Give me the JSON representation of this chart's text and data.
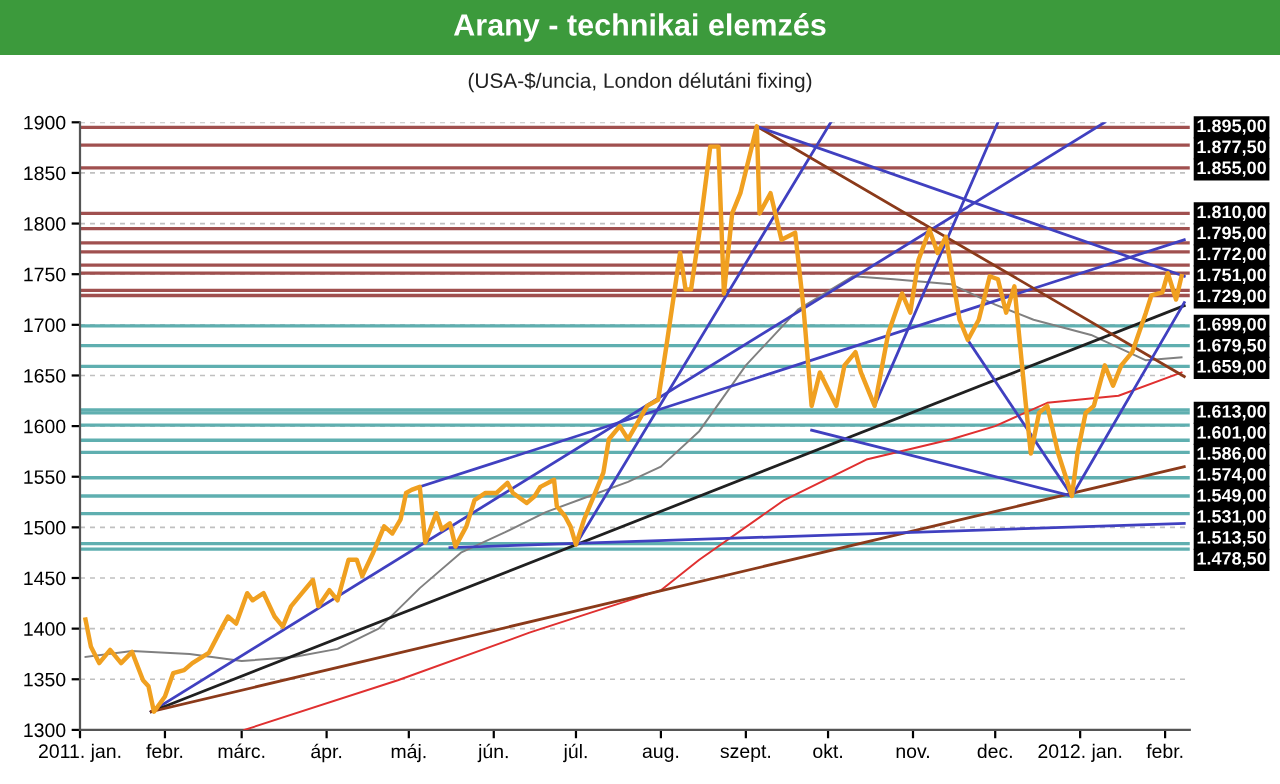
{
  "chart_data": {
    "type": "line",
    "title": "Arany - technikai elemzés",
    "subtitle": "(USA-$/uncia, London délutáni fixing)",
    "xlim": [
      "2011-01-01",
      "2012-02-10"
    ],
    "xticks": [
      {
        "value": "2011-01-01",
        "label": "2011. jan."
      },
      {
        "value": "2011-02-01",
        "label": "febr."
      },
      {
        "value": "2011-03-01",
        "label": "márc."
      },
      {
        "value": "2011-04-01",
        "label": "ápr."
      },
      {
        "value": "2011-05-01",
        "label": "máj."
      },
      {
        "value": "2011-06-01",
        "label": "jún."
      },
      {
        "value": "2011-07-01",
        "label": "júl."
      },
      {
        "value": "2011-08-01",
        "label": "aug."
      },
      {
        "value": "2011-09-01",
        "label": "szept."
      },
      {
        "value": "2011-10-01",
        "label": "okt."
      },
      {
        "value": "2011-11-01",
        "label": "nov."
      },
      {
        "value": "2011-12-01",
        "label": "dec."
      },
      {
        "value": "2012-01-01",
        "label": "2012. jan."
      },
      {
        "value": "2012-02-01",
        "label": "febr."
      }
    ],
    "ylim": [
      1300,
      1900
    ],
    "yticks": [
      1300,
      1350,
      1400,
      1450,
      1500,
      1550,
      1600,
      1650,
      1700,
      1750,
      1800,
      1850,
      1900
    ],
    "grid": "y",
    "legend": false,
    "marker": "none",
    "line_style": "solid",
    "series": [
      {
        "color": "#e03030",
        "x": [
          "2011-03-02",
          "2011-04-27",
          "2011-06-14",
          "2011-07-09",
          "2011-08-01",
          "2011-08-15",
          "2011-09-15",
          "2011-10-15",
          "2011-11-15",
          "2011-12-01",
          "2011-12-20",
          "2012-01-15",
          "2012-02-07"
        ],
        "values": [
          1300,
          1349,
          1396,
          1418,
          1438,
          1468,
          1527,
          1567,
          1587,
          1600,
          1623,
          1630,
          1653
        ]
      },
      {
        "color": "#808080",
        "x": [
          "2011-01-03",
          "2011-01-20",
          "2011-02-10",
          "2011-03-01",
          "2011-03-20",
          "2011-04-05",
          "2011-04-20",
          "2011-05-05",
          "2011-05-20",
          "2011-06-05",
          "2011-06-20",
          "2011-07-05",
          "2011-07-20",
          "2011-08-01",
          "2011-08-15",
          "2011-09-01",
          "2011-09-20",
          "2011-10-10",
          "2011-10-25",
          "2011-11-15",
          "2011-12-01",
          "2011-12-15",
          "2012-01-05",
          "2012-01-25",
          "2012-02-07"
        ],
        "values": [
          1372,
          1378,
          1375,
          1368,
          1372,
          1380,
          1400,
          1440,
          1475,
          1495,
          1515,
          1530,
          1545,
          1560,
          1595,
          1660,
          1715,
          1748,
          1745,
          1740,
          1720,
          1705,
          1690,
          1665,
          1668
        ]
      },
      {
        "color": "#4040c0",
        "x": [
          "2011-01-27",
          "2012-01-10"
        ],
        "values": [
          1318,
          1900
        ]
      },
      {
        "color": "#4040c0",
        "x": [
          "2011-05-05",
          "2012-02-08"
        ],
        "values": [
          1540,
          1784
        ]
      },
      {
        "color": "#4040c0",
        "x": [
          "2011-07-01",
          "2011-10-02"
        ],
        "values": [
          1483,
          1900
        ]
      },
      {
        "color": "#202020",
        "x": [
          "2011-01-27",
          "2012-02-08"
        ],
        "values": [
          1318,
          1719
        ]
      },
      {
        "color": "#8b3a1a",
        "x": [
          "2011-01-27",
          "2012-02-08"
        ],
        "values": [
          1318,
          1560
        ]
      },
      {
        "color": "#4040c0",
        "x": [
          "2011-05-16",
          "2012-02-08"
        ],
        "values": [
          1480,
          1504
        ]
      },
      {
        "color": "#8b3a1a",
        "x": [
          "2011-09-05",
          "2012-02-08"
        ],
        "values": [
          1896,
          1649
        ]
      },
      {
        "color": "#4040c0",
        "x": [
          "2011-09-05",
          "2012-02-08"
        ],
        "values": [
          1896,
          1748
        ]
      },
      {
        "color": "#4040c0",
        "x": [
          "2011-09-25",
          "2011-12-29"
        ],
        "values": [
          1596,
          1531
        ]
      },
      {
        "color": "#4040c0",
        "x": [
          "2011-12-29",
          "2012-02-08"
        ],
        "values": [
          1531,
          1722
        ]
      },
      {
        "color": "#4040c0",
        "x": [
          "2011-11-21",
          "2011-12-29"
        ],
        "values": [
          1685,
          1531
        ]
      },
      {
        "color": "#4040c0",
        "x": [
          "2011-10-18",
          "2011-12-02"
        ],
        "values": [
          1620,
          1900
        ]
      },
      {
        "color": "#f0a020",
        "x": [
          "2011-01-03",
          "2011-01-05",
          "2011-01-08",
          "2011-01-12",
          "2011-01-16",
          "2011-01-20",
          "2011-01-24",
          "2011-01-26",
          "2011-01-28",
          "2011-02-01",
          "2011-02-04",
          "2011-02-08",
          "2011-02-11",
          "2011-02-17",
          "2011-02-22",
          "2011-02-24",
          "2011-02-27",
          "2011-03-03",
          "2011-03-05",
          "2011-03-09",
          "2011-03-13",
          "2011-03-16",
          "2011-03-19",
          "2011-03-23",
          "2011-03-27",
          "2011-03-29",
          "2011-04-02",
          "2011-04-05",
          "2011-04-09",
          "2011-04-12",
          "2011-04-14",
          "2011-04-18",
          "2011-04-22",
          "2011-04-25",
          "2011-04-28",
          "2011-04-30",
          "2011-05-02",
          "2011-05-05",
          "2011-05-07",
          "2011-05-11",
          "2011-05-13",
          "2011-05-16",
          "2011-05-18",
          "2011-05-22",
          "2011-05-25",
          "2011-05-29",
          "2011-06-02",
          "2011-06-06",
          "2011-06-08",
          "2011-06-13",
          "2011-06-16",
          "2011-06-18",
          "2011-06-23",
          "2011-06-24",
          "2011-06-27",
          "2011-06-29",
          "2011-07-01",
          "2011-07-04",
          "2011-07-08",
          "2011-07-11",
          "2011-07-13",
          "2011-07-17",
          "2011-07-20",
          "2011-07-24",
          "2011-07-27",
          "2011-07-31",
          "2011-08-03",
          "2011-08-08",
          "2011-08-10",
          "2011-08-12",
          "2011-08-15",
          "2011-08-19",
          "2011-08-22",
          "2011-08-24",
          "2011-08-27",
          "2011-08-30",
          "2011-09-02",
          "2011-09-05",
          "2011-09-06",
          "2011-09-10",
          "2011-09-14",
          "2011-09-19",
          "2011-09-22",
          "2011-09-25",
          "2011-09-28",
          "2011-10-04",
          "2011-10-07",
          "2011-10-11",
          "2011-10-13",
          "2011-10-18",
          "2011-10-23",
          "2011-10-28",
          "2011-10-31",
          "2011-11-03",
          "2011-11-07",
          "2011-11-10",
          "2011-11-13",
          "2011-11-18",
          "2011-11-21",
          "2011-11-25",
          "2011-11-29",
          "2011-12-02",
          "2011-12-05",
          "2011-12-08",
          "2011-12-12",
          "2011-12-14",
          "2011-12-17",
          "2011-12-20",
          "2011-12-24",
          "2011-12-29",
          "2011-12-31",
          "2012-01-03",
          "2012-01-06",
          "2012-01-10",
          "2012-01-13",
          "2012-01-16",
          "2012-01-20",
          "2012-01-25",
          "2012-01-27",
          "2012-01-31",
          "2012-02-02",
          "2012-02-05",
          "2012-02-07"
        ],
        "values": [
          1409,
          1382,
          1366,
          1379,
          1366,
          1377,
          1349,
          1343,
          1318,
          1333,
          1356,
          1359,
          1366,
          1376,
          1402,
          1412,
          1405,
          1435,
          1428,
          1435,
          1412,
          1402,
          1422,
          1435,
          1448,
          1422,
          1438,
          1428,
          1468,
          1468,
          1452,
          1475,
          1501,
          1494,
          1508,
          1534,
          1537,
          1540,
          1485,
          1514,
          1498,
          1504,
          1481,
          1501,
          1527,
          1534,
          1534,
          1544,
          1534,
          1524,
          1531,
          1540,
          1547,
          1521,
          1511,
          1501,
          1483,
          1508,
          1534,
          1554,
          1587,
          1600,
          1587,
          1606,
          1620,
          1626,
          1679,
          1771,
          1735,
          1735,
          1791,
          1876,
          1876,
          1731,
          1810,
          1830,
          1863,
          1896,
          1810,
          1830,
          1784,
          1791,
          1718,
          1620,
          1653,
          1620,
          1660,
          1673,
          1653,
          1620,
          1692,
          1731,
          1712,
          1764,
          1794,
          1771,
          1787,
          1705,
          1685,
          1705,
          1748,
          1745,
          1712,
          1738,
          1626,
          1573,
          1613,
          1620,
          1573,
          1531,
          1573,
          1613,
          1620,
          1660,
          1640,
          1660,
          1673,
          1712,
          1729,
          1732,
          1751,
          1725,
          1748
        ]
      }
    ],
    "ref_lines": [
      {
        "axis": "y",
        "value": 1895,
        "label": "1.895,00",
        "color": "#a0504f"
      },
      {
        "axis": "y",
        "value": 1877.5,
        "label": "1.877,50",
        "color": "#a0504f"
      },
      {
        "axis": "y",
        "value": 1855,
        "label": "1.855,00",
        "color": "#a0504f"
      },
      {
        "axis": "y",
        "value": 1810,
        "label": "1.810,00",
        "color": "#a0504f"
      },
      {
        "axis": "y",
        "value": 1795,
        "label": "1.795,00",
        "color": "#a0504f"
      },
      {
        "axis": "y",
        "value": 1781,
        "label": null,
        "color": "#a0504f"
      },
      {
        "axis": "y",
        "value": 1772,
        "label": "1.772,00",
        "color": "#a0504f"
      },
      {
        "axis": "y",
        "value": 1759,
        "label": null,
        "color": "#a0504f"
      },
      {
        "axis": "y",
        "value": 1751,
        "label": "1.751,00",
        "color": "#a0504f"
      },
      {
        "axis": "y",
        "value": 1734,
        "label": null,
        "color": "#a0504f"
      },
      {
        "axis": "y",
        "value": 1729,
        "label": "1.729,00",
        "color": "#a0504f"
      },
      {
        "axis": "y",
        "value": 1699,
        "label": "1.699,00",
        "color": "#5fafb0"
      },
      {
        "axis": "y",
        "value": 1679.5,
        "label": "1.679,50",
        "color": "#5fafb0"
      },
      {
        "axis": "y",
        "value": 1659,
        "label": "1.659,00",
        "color": "#5fafb0"
      },
      {
        "axis": "y",
        "value": 1616,
        "label": null,
        "color": "#5fafb0"
      },
      {
        "axis": "y",
        "value": 1613,
        "label": "1.613,00",
        "color": "#5fafb0"
      },
      {
        "axis": "y",
        "value": 1601,
        "label": "1.601,00",
        "color": "#5fafb0"
      },
      {
        "axis": "y",
        "value": 1586,
        "label": "1.586,00",
        "color": "#5fafb0"
      },
      {
        "axis": "y",
        "value": 1574,
        "label": "1.574,00",
        "color": "#5fafb0"
      },
      {
        "axis": "y",
        "value": 1549,
        "label": "1.549,00",
        "color": "#5fafb0"
      },
      {
        "axis": "y",
        "value": 1531,
        "label": "1.531,00",
        "color": "#5fafb0"
      },
      {
        "axis": "y",
        "value": 1513.5,
        "label": "1.513,50",
        "color": "#5fafb0"
      },
      {
        "axis": "y",
        "value": 1484,
        "label": null,
        "color": "#5fafb0"
      },
      {
        "axis": "y",
        "value": 1478.5,
        "label": "1.478,50",
        "color": "#5fafb0"
      }
    ]
  }
}
